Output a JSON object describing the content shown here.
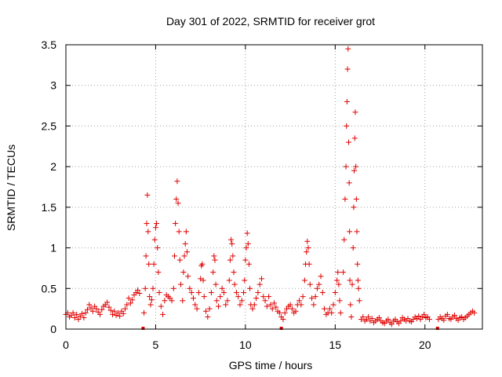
{
  "chart_data": {
    "type": "scatter",
    "title": "Day 301 of 2022, SRMTID for receiver grot",
    "xlabel": "GPS time / hours",
    "ylabel": "SRMTID / TECUs",
    "xlim": [
      0,
      23.2
    ],
    "ylim": [
      0,
      3.5
    ],
    "x_ticks": [
      0,
      5,
      10,
      15,
      20
    ],
    "x_tick_labels": [
      "0",
      "5",
      "10",
      "15",
      "20"
    ],
    "y_ticks": [
      0,
      0.5,
      1,
      1.5,
      2,
      2.5,
      3,
      3.5
    ],
    "y_tick_labels": [
      "0",
      "0.5",
      "1",
      "1.5",
      "2",
      "2.5",
      "3",
      "3.5"
    ],
    "grid": true,
    "marker": "plus",
    "series": [
      {
        "name": "SRMTID",
        "color": "#e00000",
        "points": [
          [
            0.0,
            0.18
          ],
          [
            0.1,
            0.2
          ],
          [
            0.2,
            0.15
          ],
          [
            0.3,
            0.17
          ],
          [
            0.4,
            0.2
          ],
          [
            0.5,
            0.14
          ],
          [
            0.6,
            0.18
          ],
          [
            0.7,
            0.12
          ],
          [
            0.8,
            0.16
          ],
          [
            0.9,
            0.19
          ],
          [
            1.0,
            0.14
          ],
          [
            1.1,
            0.2
          ],
          [
            1.2,
            0.24
          ],
          [
            1.3,
            0.3
          ],
          [
            1.4,
            0.26
          ],
          [
            1.5,
            0.22
          ],
          [
            1.6,
            0.28
          ],
          [
            1.7,
            0.25
          ],
          [
            1.8,
            0.21
          ],
          [
            1.9,
            0.18
          ],
          [
            2.0,
            0.24
          ],
          [
            2.1,
            0.28
          ],
          [
            2.2,
            0.3
          ],
          [
            2.3,
            0.33
          ],
          [
            2.4,
            0.27
          ],
          [
            2.5,
            0.23
          ],
          [
            2.6,
            0.18
          ],
          [
            2.7,
            0.22
          ],
          [
            2.8,
            0.17
          ],
          [
            2.9,
            0.2
          ],
          [
            3.0,
            0.16
          ],
          [
            3.1,
            0.22
          ],
          [
            3.2,
            0.19
          ],
          [
            3.3,
            0.25
          ],
          [
            3.4,
            0.3
          ],
          [
            3.5,
            0.38
          ],
          [
            3.6,
            0.32
          ],
          [
            3.7,
            0.36
          ],
          [
            3.8,
            0.42
          ],
          [
            3.9,
            0.45
          ],
          [
            4.0,
            0.48
          ],
          [
            4.1,
            0.44
          ],
          [
            4.35,
            0.2
          ],
          [
            4.42,
            0.5
          ],
          [
            4.46,
            0.9
          ],
          [
            4.5,
            1.3
          ],
          [
            4.54,
            1.65
          ],
          [
            4.58,
            1.2
          ],
          [
            4.62,
            0.8
          ],
          [
            4.66,
            0.4
          ],
          [
            4.72,
            0.3
          ],
          [
            4.78,
            0.36
          ],
          [
            4.85,
            0.5
          ],
          [
            4.9,
            0.8
          ],
          [
            4.95,
            1.1
          ],
          [
            5.0,
            1.25
          ],
          [
            5.05,
            1.3
          ],
          [
            5.1,
            1.0
          ],
          [
            5.15,
            0.7
          ],
          [
            5.2,
            0.45
          ],
          [
            5.3,
            0.28
          ],
          [
            5.4,
            0.18
          ],
          [
            5.5,
            0.35
          ],
          [
            5.6,
            0.42
          ],
          [
            5.7,
            0.4
          ],
          [
            5.8,
            0.38
          ],
          [
            5.9,
            0.35
          ],
          [
            6.0,
            0.5
          ],
          [
            6.05,
            0.9
          ],
          [
            6.1,
            1.3
          ],
          [
            6.15,
            1.6
          ],
          [
            6.2,
            1.82
          ],
          [
            6.25,
            1.55
          ],
          [
            6.3,
            1.2
          ],
          [
            6.35,
            0.85
          ],
          [
            6.4,
            0.55
          ],
          [
            6.5,
            0.35
          ],
          [
            6.55,
            0.7
          ],
          [
            6.6,
            0.9
          ],
          [
            6.65,
            1.05
          ],
          [
            6.7,
            1.2
          ],
          [
            6.75,
            0.95
          ],
          [
            6.8,
            0.65
          ],
          [
            6.9,
            0.5
          ],
          [
            7.0,
            0.45
          ],
          [
            7.1,
            0.38
          ],
          [
            7.2,
            0.3
          ],
          [
            7.3,
            0.25
          ],
          [
            7.4,
            0.45
          ],
          [
            7.5,
            0.62
          ],
          [
            7.55,
            0.78
          ],
          [
            7.6,
            0.8
          ],
          [
            7.65,
            0.6
          ],
          [
            7.7,
            0.4
          ],
          [
            7.8,
            0.22
          ],
          [
            7.9,
            0.15
          ],
          [
            8.0,
            0.25
          ],
          [
            8.1,
            0.45
          ],
          [
            8.2,
            0.7
          ],
          [
            8.25,
            0.9
          ],
          [
            8.3,
            0.85
          ],
          [
            8.35,
            0.55
          ],
          [
            8.4,
            0.35
          ],
          [
            8.5,
            0.28
          ],
          [
            8.6,
            0.4
          ],
          [
            8.7,
            0.5
          ],
          [
            8.8,
            0.45
          ],
          [
            8.9,
            0.3
          ],
          [
            9.0,
            0.35
          ],
          [
            9.1,
            0.6
          ],
          [
            9.15,
            0.85
          ],
          [
            9.2,
            1.1
          ],
          [
            9.25,
            1.05
          ],
          [
            9.3,
            0.9
          ],
          [
            9.35,
            0.7
          ],
          [
            9.4,
            0.55
          ],
          [
            9.5,
            0.45
          ],
          [
            9.6,
            0.4
          ],
          [
            9.7,
            0.3
          ],
          [
            9.8,
            0.35
          ],
          [
            9.9,
            0.45
          ],
          [
            9.95,
            0.6
          ],
          [
            10.0,
            0.85
          ],
          [
            10.05,
            1.0
          ],
          [
            10.1,
            1.18
          ],
          [
            10.15,
            1.05
          ],
          [
            10.2,
            0.8
          ],
          [
            10.25,
            0.5
          ],
          [
            10.3,
            0.3
          ],
          [
            10.4,
            0.25
          ],
          [
            10.5,
            0.3
          ],
          [
            10.6,
            0.38
          ],
          [
            10.7,
            0.45
          ],
          [
            10.8,
            0.55
          ],
          [
            10.9,
            0.62
          ],
          [
            11.0,
            0.4
          ],
          [
            11.1,
            0.35
          ],
          [
            11.2,
            0.28
          ],
          [
            11.3,
            0.4
          ],
          [
            11.4,
            0.3
          ],
          [
            11.5,
            0.25
          ],
          [
            11.6,
            0.32
          ],
          [
            11.7,
            0.27
          ],
          [
            11.8,
            0.22
          ],
          [
            11.9,
            0.2
          ],
          [
            12.0,
            0.15
          ],
          [
            12.1,
            0.12
          ],
          [
            12.2,
            0.2
          ],
          [
            12.3,
            0.25
          ],
          [
            12.4,
            0.28
          ],
          [
            12.5,
            0.3
          ],
          [
            12.6,
            0.25
          ],
          [
            12.7,
            0.2
          ],
          [
            12.8,
            0.22
          ],
          [
            12.9,
            0.3
          ],
          [
            13.0,
            0.35
          ],
          [
            13.1,
            0.3
          ],
          [
            13.2,
            0.4
          ],
          [
            13.3,
            0.6
          ],
          [
            13.35,
            0.8
          ],
          [
            13.4,
            0.95
          ],
          [
            13.45,
            1.08
          ],
          [
            13.5,
            1.0
          ],
          [
            13.55,
            0.8
          ],
          [
            13.6,
            0.55
          ],
          [
            13.7,
            0.38
          ],
          [
            13.8,
            0.3
          ],
          [
            13.9,
            0.4
          ],
          [
            14.0,
            0.5
          ],
          [
            14.1,
            0.55
          ],
          [
            14.2,
            0.65
          ],
          [
            14.3,
            0.45
          ],
          [
            14.4,
            0.25
          ],
          [
            14.5,
            0.18
          ],
          [
            14.6,
            0.2
          ],
          [
            14.7,
            0.25
          ],
          [
            14.8,
            0.2
          ],
          [
            14.9,
            0.3
          ],
          [
            15.0,
            0.45
          ],
          [
            15.1,
            0.6
          ],
          [
            15.15,
            0.7
          ],
          [
            15.2,
            0.55
          ],
          [
            15.25,
            0.35
          ],
          [
            15.3,
            0.2
          ],
          [
            15.45,
            0.7
          ],
          [
            15.5,
            1.1
          ],
          [
            15.55,
            1.6
          ],
          [
            15.6,
            2.0
          ],
          [
            15.63,
            2.5
          ],
          [
            15.66,
            2.8
          ],
          [
            15.69,
            3.2
          ],
          [
            15.72,
            3.45
          ],
          [
            15.75,
            2.3
          ],
          [
            15.78,
            1.8
          ],
          [
            15.8,
            1.2
          ],
          [
            15.82,
            0.6
          ],
          [
            15.85,
            0.3
          ],
          [
            15.9,
            0.15
          ],
          [
            15.95,
            0.55
          ],
          [
            16.0,
            1.0
          ],
          [
            16.03,
            1.5
          ],
          [
            16.06,
            1.95
          ],
          [
            16.09,
            2.35
          ],
          [
            16.12,
            2.67
          ],
          [
            16.15,
            2.0
          ],
          [
            16.18,
            1.6
          ],
          [
            16.21,
            1.2
          ],
          [
            16.24,
            0.8
          ],
          [
            16.27,
            0.6
          ],
          [
            16.3,
            0.5
          ],
          [
            16.35,
            0.35
          ],
          [
            16.45,
            0.12
          ],
          [
            16.55,
            0.15
          ],
          [
            16.65,
            0.1
          ],
          [
            16.75,
            0.12
          ],
          [
            16.85,
            0.15
          ],
          [
            16.95,
            0.1
          ],
          [
            17.05,
            0.13
          ],
          [
            17.15,
            0.08
          ],
          [
            17.25,
            0.1
          ],
          [
            17.35,
            0.12
          ],
          [
            17.45,
            0.14
          ],
          [
            17.55,
            0.1
          ],
          [
            17.65,
            0.08
          ],
          [
            17.75,
            0.07
          ],
          [
            17.85,
            0.1
          ],
          [
            17.95,
            0.12
          ],
          [
            18.05,
            0.08
          ],
          [
            18.15,
            0.06
          ],
          [
            18.25,
            0.1
          ],
          [
            18.35,
            0.12
          ],
          [
            18.45,
            0.09
          ],
          [
            18.55,
            0.07
          ],
          [
            18.65,
            0.1
          ],
          [
            18.75,
            0.14
          ],
          [
            18.85,
            0.12
          ],
          [
            18.95,
            0.1
          ],
          [
            19.05,
            0.13
          ],
          [
            19.15,
            0.1
          ],
          [
            19.25,
            0.09
          ],
          [
            19.35,
            0.12
          ],
          [
            19.45,
            0.15
          ],
          [
            19.55,
            0.13
          ],
          [
            19.65,
            0.16
          ],
          [
            19.75,
            0.12
          ],
          [
            19.85,
            0.15
          ],
          [
            19.95,
            0.18
          ],
          [
            20.05,
            0.14
          ],
          [
            20.15,
            0.15
          ],
          [
            20.25,
            0.12
          ],
          [
            20.75,
            0.12
          ],
          [
            20.85,
            0.15
          ],
          [
            20.95,
            0.13
          ],
          [
            21.05,
            0.11
          ],
          [
            21.15,
            0.16
          ],
          [
            21.25,
            0.18
          ],
          [
            21.35,
            0.13
          ],
          [
            21.45,
            0.12
          ],
          [
            21.55,
            0.15
          ],
          [
            21.65,
            0.17
          ],
          [
            21.75,
            0.13
          ],
          [
            21.85,
            0.11
          ],
          [
            21.95,
            0.14
          ],
          [
            22.05,
            0.15
          ],
          [
            22.15,
            0.12
          ],
          [
            22.25,
            0.14
          ],
          [
            22.35,
            0.16
          ],
          [
            22.45,
            0.18
          ],
          [
            22.55,
            0.2
          ],
          [
            22.65,
            0.22
          ],
          [
            22.75,
            0.2
          ]
        ]
      }
    ],
    "baseline_markers": [
      4.3,
      12.0,
      20.7
    ]
  }
}
